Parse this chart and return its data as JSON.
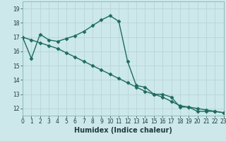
{
  "title": "",
  "xlabel": "Humidex (Indice chaleur)",
  "ylabel": "",
  "bg_color": "#cce8ea",
  "line_color": "#1e6b5e",
  "grid_color": "#b8d4d6",
  "line1_x": [
    0,
    1,
    2,
    3,
    4,
    5,
    6,
    7,
    8,
    9,
    10,
    11,
    12,
    13,
    14,
    15,
    16,
    17,
    18,
    19,
    20,
    21,
    22,
    23
  ],
  "line1_y": [
    17.0,
    15.5,
    17.2,
    16.8,
    16.7,
    16.9,
    17.1,
    17.4,
    17.8,
    18.2,
    18.5,
    18.1,
    15.3,
    13.6,
    13.5,
    13.0,
    13.0,
    12.8,
    12.1,
    12.1,
    11.8,
    11.8,
    11.8,
    11.7
  ],
  "line2_x": [
    0,
    1,
    2,
    3,
    4,
    5,
    6,
    7,
    8,
    9,
    10,
    11,
    12,
    13,
    14,
    15,
    16,
    17,
    18,
    19,
    20,
    21,
    22,
    23
  ],
  "line2_y": [
    17.0,
    16.8,
    16.6,
    16.4,
    16.2,
    15.9,
    15.6,
    15.3,
    15.0,
    14.7,
    14.4,
    14.1,
    13.8,
    13.5,
    13.2,
    13.0,
    12.8,
    12.5,
    12.2,
    12.1,
    12.0,
    11.9,
    11.8,
    11.7
  ],
  "xlim": [
    0,
    23
  ],
  "ylim": [
    11.5,
    19.5
  ],
  "yticks": [
    12,
    13,
    14,
    15,
    16,
    17,
    18,
    19
  ],
  "xticks": [
    0,
    1,
    2,
    3,
    4,
    5,
    6,
    7,
    8,
    9,
    10,
    11,
    12,
    13,
    14,
    15,
    16,
    17,
    18,
    19,
    20,
    21,
    22,
    23
  ],
  "marker": "D",
  "markersize": 2.5,
  "linewidth": 1.0,
  "tick_fontsize": 5.5,
  "xlabel_fontsize": 7.0
}
